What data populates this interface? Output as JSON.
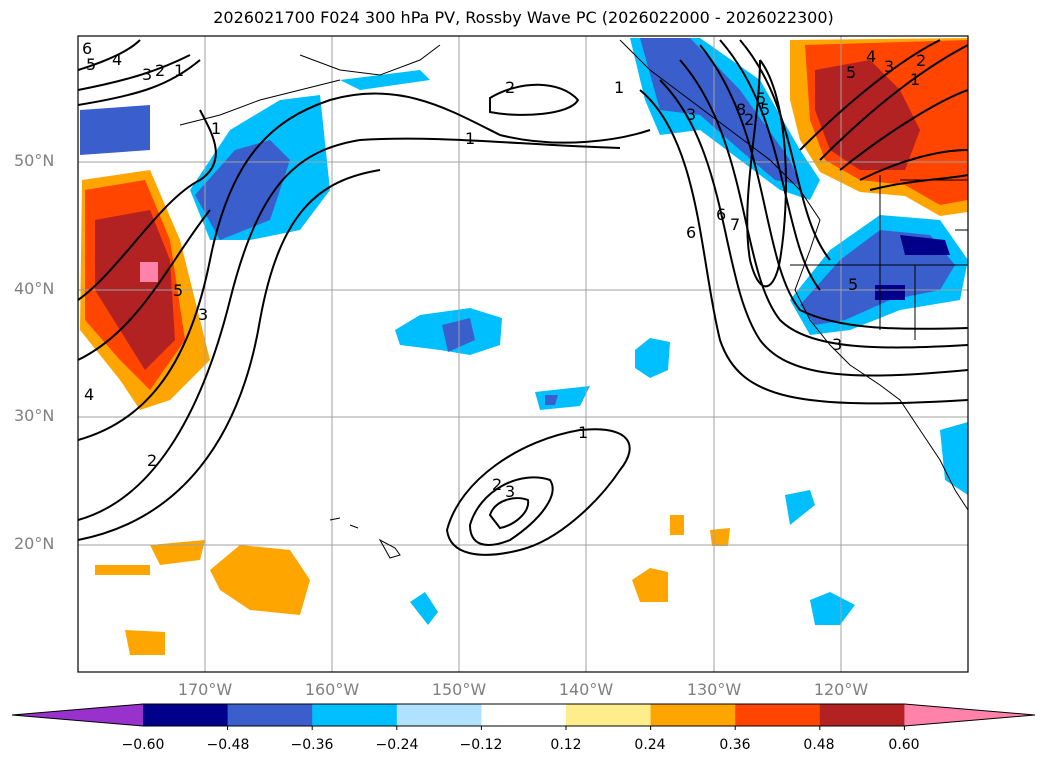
{
  "title": "2026021700 F024 300 hPa PV, Rossby Wave PC (2026022000 - 2026022300)",
  "map": {
    "lon_range": [
      -180,
      -110
    ],
    "lat_range": [
      10,
      60
    ],
    "lat_labels": [
      "50°N",
      "40°N",
      "30°N",
      "20°N"
    ],
    "lat_values": [
      50,
      40,
      30,
      20
    ],
    "lon_labels": [
      "170°W",
      "160°W",
      "150°W",
      "140°W",
      "130°W",
      "120°W"
    ],
    "lon_values": [
      -170,
      -160,
      -150,
      -140,
      -130,
      -120
    ],
    "contour_labels": [
      "6",
      "5",
      "4",
      "3",
      "2",
      "1",
      "2",
      "1",
      "1",
      "5",
      "3",
      "2",
      "4",
      "1",
      "2",
      "3",
      "6",
      "7",
      "8",
      "5",
      "6",
      "5",
      "4",
      "3",
      "2",
      "1",
      "3",
      "5",
      "1",
      "3",
      "2",
      "5"
    ]
  },
  "colorbar": {
    "ticks": [
      "−0.60",
      "−0.48",
      "−0.36",
      "−0.24",
      "−0.12",
      "0.12",
      "0.24",
      "0.36",
      "0.48",
      "0.60"
    ],
    "colors": [
      "#9932cc",
      "#00008b",
      "#3a5fcd",
      "#00bfff",
      "#b0e2ff",
      "#ffffff",
      "#ffec8b",
      "#ffa500",
      "#ff4500",
      "#b22222",
      "#ff82ab"
    ]
  }
}
